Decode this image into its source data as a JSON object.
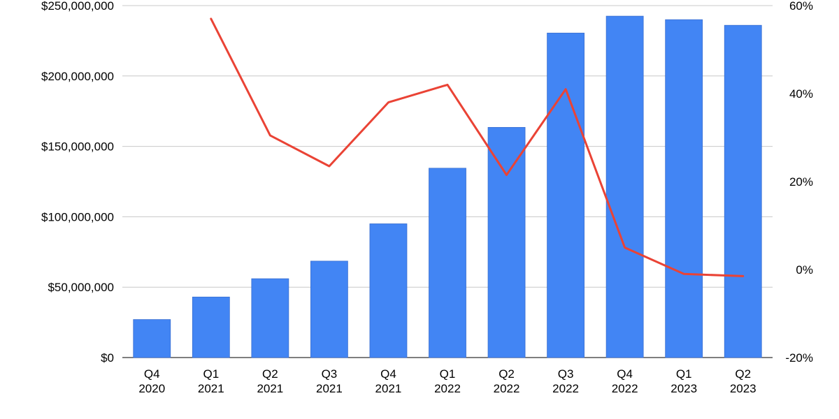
{
  "chart_data": {
    "type": "bar+line",
    "title": "",
    "categories": [
      "Q4 2020",
      "Q1 2021",
      "Q2 2021",
      "Q3 2021",
      "Q4 2021",
      "Q1 2022",
      "Q2 2022",
      "Q3 2022",
      "Q4 2022",
      "Q1 2023",
      "Q2 2023"
    ],
    "category_lines": [
      [
        "Q4",
        "2020"
      ],
      [
        "Q1",
        "2021"
      ],
      [
        "Q2",
        "2021"
      ],
      [
        "Q3",
        "2021"
      ],
      [
        "Q4",
        "2021"
      ],
      [
        "Q1",
        "2022"
      ],
      [
        "Q2",
        "2022"
      ],
      [
        "Q3",
        "2022"
      ],
      [
        "Q4",
        "2022"
      ],
      [
        "Q1",
        "2023"
      ],
      [
        "Q2",
        "2023"
      ]
    ],
    "series": [
      {
        "type": "bar",
        "axis": "left",
        "color": "#4285f4",
        "values": [
          27000000,
          43000000,
          56000000,
          68500000,
          95000000,
          134500000,
          163500000,
          230500000,
          242500000,
          240000000,
          236000000
        ]
      },
      {
        "type": "line",
        "axis": "right",
        "color": "#ea4335",
        "values": [
          null,
          57,
          30.5,
          23.5,
          38,
          42,
          21.5,
          41,
          5,
          -1,
          -1.5
        ]
      }
    ],
    "y_left": {
      "range": [
        0,
        250000000
      ],
      "ticks": [
        0,
        50000000,
        100000000,
        150000000,
        200000000,
        250000000
      ],
      "tick_labels": [
        "$0",
        "$50,000,000",
        "$100,000,000",
        "$150,000,000",
        "$200,000,000",
        "$250,000,000"
      ]
    },
    "y_right": {
      "range": [
        -20,
        60
      ],
      "ticks": [
        -20,
        0,
        20,
        40,
        60
      ],
      "tick_labels": [
        "-20%",
        "0%",
        "20%",
        "40%",
        "60%"
      ]
    },
    "grid": true,
    "grid_color": "#c8c8c8",
    "legend": "none"
  }
}
